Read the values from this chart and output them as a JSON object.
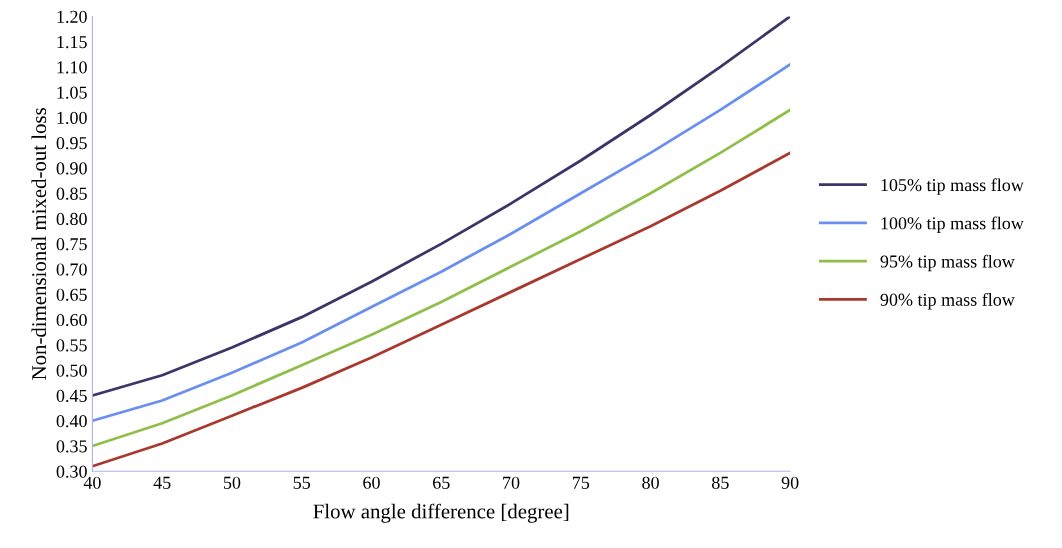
{
  "chart_data": {
    "type": "line",
    "xlabel": "Flow angle difference [degree]",
    "ylabel": "Non-dimensional mixed-out loss",
    "x": [
      40,
      45,
      50,
      55,
      60,
      65,
      70,
      75,
      80,
      85,
      90
    ],
    "series": [
      {
        "name": "105% tip mass flow",
        "color": "#3b3568",
        "values": [
          0.45,
          0.49,
          0.545,
          0.605,
          0.675,
          0.75,
          0.83,
          0.915,
          1.005,
          1.1,
          1.2
        ]
      },
      {
        "name": "100% tip mass flow",
        "color": "#6b8ff0",
        "values": [
          0.4,
          0.44,
          0.495,
          0.555,
          0.625,
          0.695,
          0.77,
          0.85,
          0.93,
          1.015,
          1.105
        ]
      },
      {
        "name": "95% tip mass flow",
        "color": "#8fbf4a",
        "values": [
          0.35,
          0.395,
          0.45,
          0.51,
          0.57,
          0.635,
          0.705,
          0.775,
          0.85,
          0.93,
          1.015
        ]
      },
      {
        "name": "90% tip mass flow",
        "color": "#a8392f",
        "values": [
          0.31,
          0.355,
          0.41,
          0.465,
          0.525,
          0.59,
          0.655,
          0.72,
          0.785,
          0.855,
          0.93
        ]
      }
    ],
    "xlim": [
      40,
      90
    ],
    "xticks": [
      40,
      45,
      50,
      55,
      60,
      65,
      70,
      75,
      80,
      85,
      90
    ],
    "ylim": [
      0.3,
      1.2
    ],
    "yticks": [
      {
        "value": 0.3,
        "label": "0.30"
      },
      {
        "value": 0.35,
        "label": "0.35"
      },
      {
        "value": 0.4,
        "label": "0.40"
      },
      {
        "value": 0.45,
        "label": "0.45"
      },
      {
        "value": 0.5,
        "label": "0.50"
      },
      {
        "value": 0.55,
        "label": "0.55"
      },
      {
        "value": 0.6,
        "label": "0.60"
      },
      {
        "value": 0.65,
        "label": "0.65"
      },
      {
        "value": 0.7,
        "label": "0.70"
      },
      {
        "value": 0.75,
        "label": "0.75"
      },
      {
        "value": 0.8,
        "label": "0.80"
      },
      {
        "value": 0.85,
        "label": "0.85"
      },
      {
        "value": 0.9,
        "label": "0.90"
      },
      {
        "value": 0.95,
        "label": "0.95"
      },
      {
        "value": 1.0,
        "label": "1.00"
      },
      {
        "value": 1.05,
        "label": "1.05"
      },
      {
        "value": 1.1,
        "label": "1.10"
      },
      {
        "value": 1.15,
        "label": "1.15"
      },
      {
        "value": 1.2,
        "label": "1.20"
      }
    ],
    "legend": "right",
    "grid": false,
    "marker": "none",
    "line_style": "solid"
  }
}
